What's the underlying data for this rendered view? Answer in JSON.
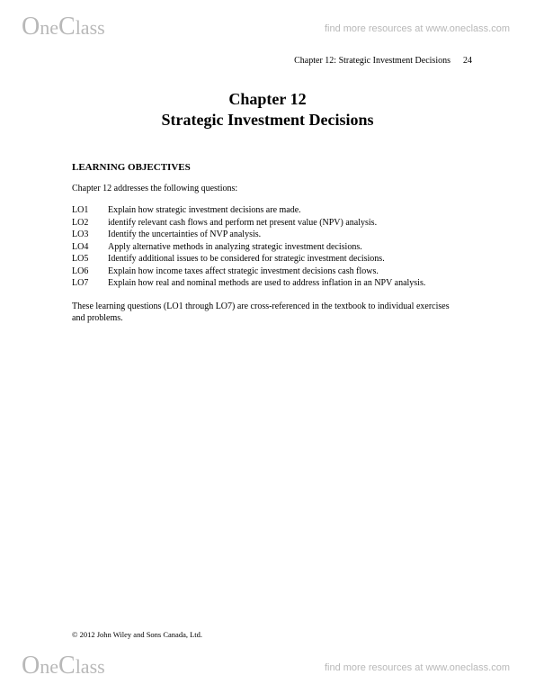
{
  "watermark": {
    "logo_prefix_cap": "O",
    "logo_prefix_rest": "ne",
    "logo_suffix_cap": "C",
    "logo_suffix_rest": "lass",
    "tagline": "find more resources at www.oneclass.com"
  },
  "header": {
    "chapter_ref": "Chapter 12: Strategic Investment Decisions",
    "page_number": "24"
  },
  "title": {
    "line1": "Chapter 12",
    "line2": "Strategic Investment Decisions"
  },
  "section_heading": "LEARNING OBJECTIVES",
  "intro_text": "Chapter 12 addresses the following questions:",
  "learning_objectives": [
    {
      "key": "LO1",
      "text": "Explain how strategic investment decisions are made."
    },
    {
      "key": "LO2",
      "text": "identify relevant cash flows and perform net present value (NPV) analysis."
    },
    {
      "key": "LO3",
      "text": "Identify the uncertainties of NVP analysis."
    },
    {
      "key": "LO4",
      "text": "Apply alternative methods in analyzing strategic investment decisions."
    },
    {
      "key": "LO5",
      "text": "Identify additional issues to be considered for strategic investment decisions."
    },
    {
      "key": "LO6",
      "text": "Explain how income taxes affect strategic investment decisions cash flows."
    },
    {
      "key": "LO7",
      "text": "Explain how real and nominal methods are used to address inflation in an NPV analysis."
    }
  ],
  "outro_text": "These learning questions (LO1 through LO7) are cross-referenced in the textbook to individual exercises and problems.",
  "copyright": "© 2012 John Wiley and Sons Canada, Ltd."
}
